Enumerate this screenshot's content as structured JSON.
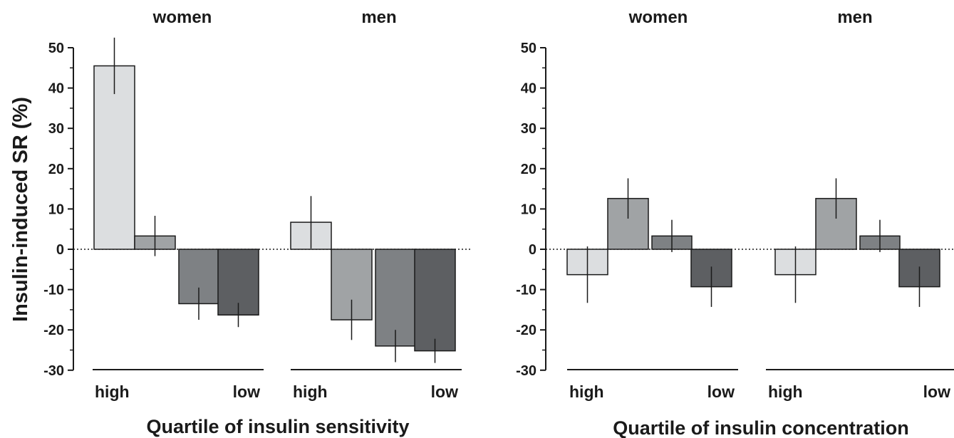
{
  "chart_data": [
    {
      "type": "bar",
      "ylabel": "Insulin-induced SR (%)",
      "xlabel": "Quartile of insulin sensitivity",
      "ylim": [
        -30,
        50
      ],
      "yticks": [
        50,
        40,
        30,
        20,
        10,
        0,
        -10,
        -20,
        -30
      ],
      "quartile_labels": {
        "first": "high",
        "last": "low"
      },
      "colors": [
        "#dcdee0",
        "#a0a3a5",
        "#7e8184",
        "#5d5f62"
      ],
      "groups": [
        {
          "name": "women",
          "values": [
            45.5,
            3.3,
            -13.5,
            -16.3
          ],
          "errors": [
            7,
            5,
            4,
            3
          ]
        },
        {
          "name": "men",
          "values": [
            6.7,
            -17.5,
            -24,
            -25.2
          ],
          "errors": [
            6.5,
            5,
            4,
            3
          ]
        }
      ]
    },
    {
      "type": "bar",
      "ylabel": "",
      "xlabel": "Quartile of insulin concentration",
      "ylim": [
        -30,
        50
      ],
      "yticks": [
        50,
        40,
        30,
        20,
        10,
        0,
        -10,
        -20,
        -30
      ],
      "quartile_labels": {
        "first": "high",
        "last": "low"
      },
      "colors": [
        "#dcdee0",
        "#a0a3a5",
        "#7e8184",
        "#5d5f62"
      ],
      "groups": [
        {
          "name": "women",
          "values": [
            -6.3,
            12.6,
            3.3,
            -9.3
          ],
          "errors": [
            7,
            5,
            4,
            5
          ]
        },
        {
          "name": "men",
          "values": [
            -6.3,
            12.6,
            3.3,
            -9.3
          ],
          "errors": [
            7,
            5,
            4,
            5
          ]
        }
      ]
    }
  ]
}
